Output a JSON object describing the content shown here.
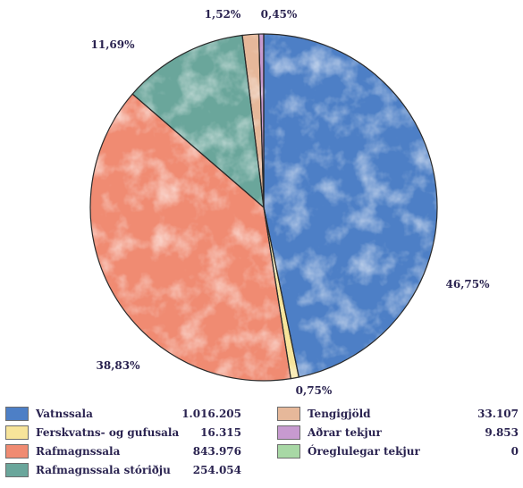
{
  "chart_data": {
    "type": "pie",
    "title": "",
    "slices": [
      {
        "label": "Vatnssala",
        "value": 1016205,
        "value_label": "1.016.205",
        "percent_label": "46,75%",
        "color": "#4d7fc6"
      },
      {
        "label": "Ferskvatns- og gufusala",
        "value": 16315,
        "value_label": "16.315",
        "percent_label": "0,75%",
        "color": "#f7e49a"
      },
      {
        "label": "Rafmagnssala",
        "value": 843976,
        "value_label": "843.976",
        "percent_label": "38,83%",
        "color": "#f08b72"
      },
      {
        "label": "Rafmagnssala stóriðju",
        "value": 254054,
        "value_label": "254.054",
        "percent_label": "11,69%",
        "color": "#6aa69b"
      },
      {
        "label": "Tengigjöld",
        "value": 33107,
        "value_label": "33.107",
        "percent_label": "1,52%",
        "color": "#e6b89a"
      },
      {
        "label": "Aðrar tekjur",
        "value": 9853,
        "value_label": "9.853",
        "percent_label": "0,45%",
        "color": "#c79ad0"
      },
      {
        "label": "Óreglulegar tekjur",
        "value": 0,
        "value_label": "0",
        "percent_label": "",
        "color": "#a8d8a5"
      }
    ]
  }
}
